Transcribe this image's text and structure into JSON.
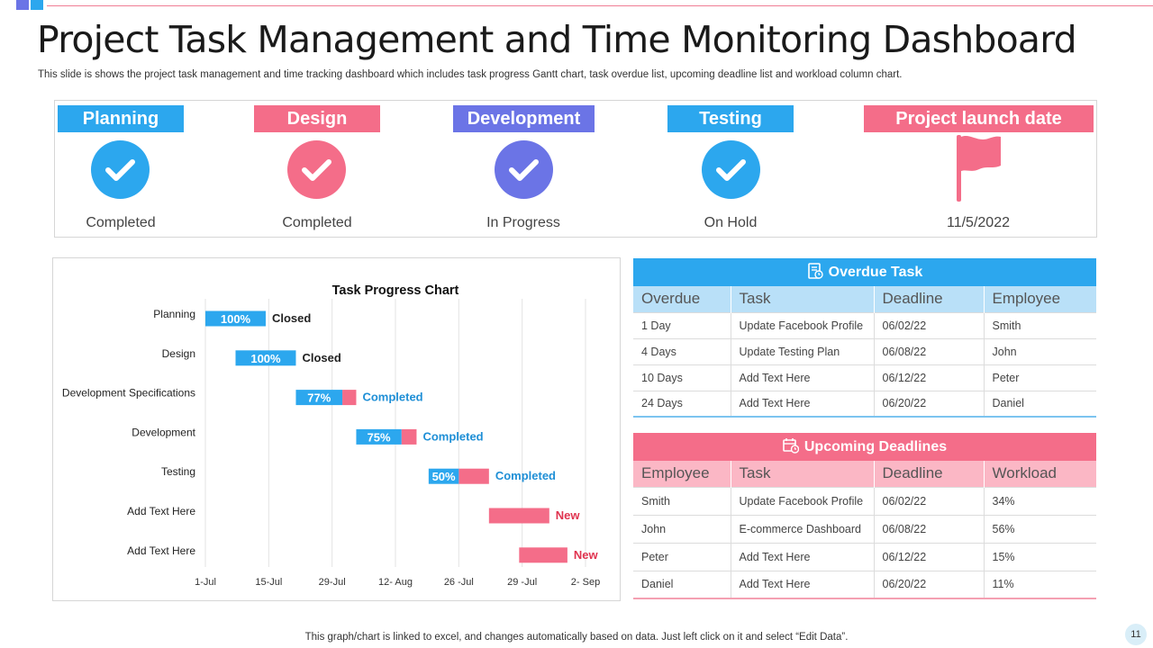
{
  "title": "Project Task Management and Time Monitoring Dashboard",
  "subtitle": "This slide is shows the project task management and time tracking dashboard which includes task progress Gantt chart, task overdue list, upcoming deadline list and workload column chart.",
  "colors": {
    "blue": "#2ca7ee",
    "pink": "#f46d89",
    "purple": "#6b74e6",
    "lightblue": "#b9e0f8",
    "lightpink": "#fbb7c5"
  },
  "stages": [
    {
      "label": "Planning",
      "status": "Completed",
      "icon": "check-icon",
      "color": "#2ca7ee"
    },
    {
      "label": "Design",
      "status": "Completed",
      "icon": "check-icon",
      "color": "#f46d89"
    },
    {
      "label": "Development",
      "status": "In Progress",
      "icon": "check-icon",
      "color": "#6b74e6"
    },
    {
      "label": "Testing",
      "status": "On Hold",
      "icon": "check-icon",
      "color": "#2ca7ee"
    },
    {
      "label": "Project launch date",
      "status": "11/5/2022",
      "icon": "flag-icon",
      "color": "#f46d89"
    }
  ],
  "chart_data": {
    "type": "bar",
    "subtype": "gantt",
    "title": "Task Progress Chart",
    "x_ticks": [
      "1-Jul",
      "15-Jul",
      "29-Jul",
      "12- Aug",
      "26 -Jul",
      "29 -Jul",
      "2- Sep"
    ],
    "x_range_days": [
      0,
      63
    ],
    "tasks": [
      {
        "name": "Planning",
        "start": 0,
        "duration": 10,
        "progress": 100,
        "progress_label": "100%",
        "status": "Closed"
      },
      {
        "name": "Design",
        "start": 5,
        "duration": 10,
        "progress": 100,
        "progress_label": "100%",
        "status": "Closed"
      },
      {
        "name": "Development Specifications",
        "start": 15,
        "duration": 10,
        "progress": 77,
        "progress_label": "77%",
        "status": "Completed"
      },
      {
        "name": "Development",
        "start": 25,
        "duration": 10,
        "progress": 75,
        "progress_label": "75%",
        "status": "Completed"
      },
      {
        "name": "Testing",
        "start": 37,
        "duration": 10,
        "progress": 50,
        "progress_label": "50%",
        "status": "Completed"
      },
      {
        "name": "Add Text Here",
        "start": 47,
        "duration": 10,
        "progress": 0,
        "progress_label": "",
        "status": "New"
      },
      {
        "name": "Add Text Here",
        "start": 52,
        "duration": 8,
        "progress": 0,
        "progress_label": "",
        "status": "New"
      }
    ],
    "status_colors": {
      "Closed": "#222222",
      "Completed": "#1f8fd6",
      "New": "#e0334f"
    },
    "done_color": "#2ca7ee",
    "remaining_color": "#f46d89"
  },
  "overdue": {
    "title": "Overdue Task",
    "icon": "task-list-icon",
    "columns": [
      "Overdue",
      "Task",
      "Deadline",
      "Employee"
    ],
    "rows": [
      [
        "1 Day",
        "Update Facebook Profile",
        "06/02/22",
        "Smith"
      ],
      [
        "4 Days",
        "Update Testing Plan",
        "06/08/22",
        "John"
      ],
      [
        "10 Days",
        "Add Text Here",
        "06/12/22",
        "Peter"
      ],
      [
        "24 Days",
        "Add Text Here",
        "06/20/22",
        "Daniel"
      ]
    ]
  },
  "upcoming": {
    "title": "Upcoming Deadlines",
    "icon": "calendar-clock-icon",
    "columns": [
      "Employee",
      "Task",
      "Deadline",
      "Workload"
    ],
    "rows": [
      [
        "Smith",
        "Update Facebook Profile",
        "06/02/22",
        "34%"
      ],
      [
        "John",
        "E-commerce Dashboard",
        "06/08/22",
        "56%"
      ],
      [
        "Peter",
        "Add Text Here",
        "06/12/22",
        "15%"
      ],
      [
        "Daniel",
        "Add Text Here",
        "06/20/22",
        "11%"
      ]
    ]
  },
  "footer": "This graph/chart is linked to excel,  and changes automatically based on data. Just left click on it and select “Edit Data”.",
  "page_number": "11"
}
